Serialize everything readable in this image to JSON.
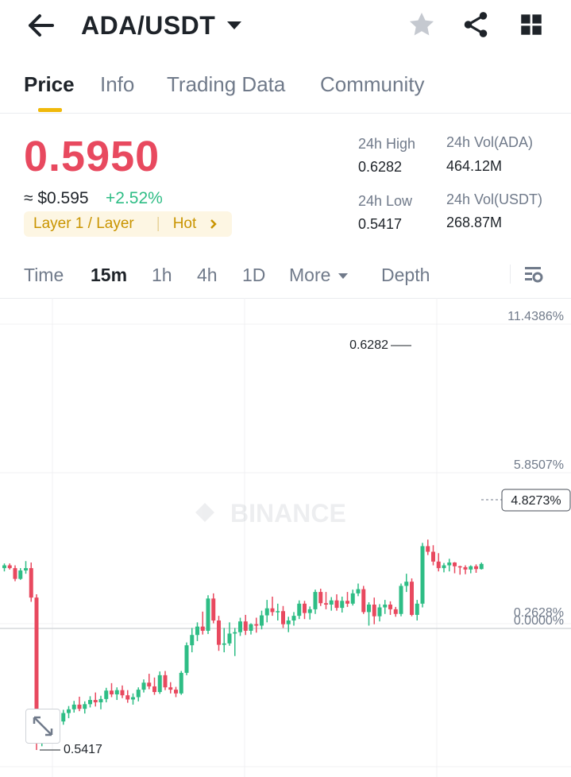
{
  "header": {
    "pair": "ADA/USDT",
    "back_icon": "arrow-left-icon",
    "dropdown_icon": "caret-down-icon",
    "star_icon": "star-icon",
    "share_icon": "share-icon",
    "grid_icon": "grid-icon"
  },
  "tabs": [
    {
      "label": "Price",
      "active": true
    },
    {
      "label": "Info",
      "active": false
    },
    {
      "label": "Trading Data",
      "active": false
    },
    {
      "label": "Community",
      "active": false
    }
  ],
  "ticker": {
    "last_price": "0.5950",
    "fiat_price": "≈ $0.595",
    "change": "+2.52%",
    "tag_category": "Layer 1 / Layer",
    "tag_hot": "Hot",
    "high_label": "24h High",
    "high_value": "0.6282",
    "low_label": "24h Low",
    "low_value": "0.5417",
    "vol_base_label": "24h Vol(ADA)",
    "vol_base_value": "464.12M",
    "vol_quote_label": "24h Vol(USDT)",
    "vol_quote_value": "268.87M"
  },
  "timeframes": {
    "time": "Time",
    "m15": "15m",
    "h1": "1h",
    "h4": "4h",
    "d1": "1D",
    "more": "More",
    "depth": "Depth",
    "settings_icon": "chart-settings-icon"
  },
  "colors": {
    "up": "#2ebd85",
    "down": "#e8495f",
    "accent": "#f0b90b"
  },
  "chart_data": {
    "type": "candlestick",
    "interval": "15m",
    "axis_percent_labels": [
      "11.4386%",
      "5.8507%",
      "0.2628%",
      "0.0000%"
    ],
    "current_percent": "4.8273%",
    "high_marker": "0.6282",
    "low_marker": "0.5417",
    "watermark": "BINANCE",
    "ylim": [
      0.541,
      0.63
    ],
    "candles": [
      [
        0.5806,
        0.5816,
        0.5799,
        0.5812
      ],
      [
        0.5812,
        0.5816,
        0.5803,
        0.5806
      ],
      [
        0.5806,
        0.5812,
        0.5778,
        0.5783
      ],
      [
        0.5783,
        0.5806,
        0.5781,
        0.5801
      ],
      [
        0.5801,
        0.5821,
        0.5794,
        0.5806
      ],
      [
        0.5806,
        0.5818,
        0.5734,
        0.5743
      ],
      [
        0.5743,
        0.575,
        0.5417,
        0.5436
      ],
      [
        0.5436,
        0.5461,
        0.5425,
        0.545
      ],
      [
        0.545,
        0.5483,
        0.5442,
        0.5472
      ],
      [
        0.5472,
        0.5487,
        0.5461,
        0.5464
      ],
      [
        0.5464,
        0.5484,
        0.5456,
        0.5478
      ],
      [
        0.5478,
        0.5503,
        0.5471,
        0.5496
      ],
      [
        0.5496,
        0.5511,
        0.5485,
        0.5504
      ],
      [
        0.5504,
        0.5522,
        0.5497,
        0.5514
      ],
      [
        0.5514,
        0.5531,
        0.55,
        0.5505
      ],
      [
        0.5505,
        0.5521,
        0.5495,
        0.5515
      ],
      [
        0.5515,
        0.5532,
        0.5508,
        0.5524
      ],
      [
        0.5524,
        0.554,
        0.551,
        0.5519
      ],
      [
        0.5519,
        0.5533,
        0.5504,
        0.5526
      ],
      [
        0.5526,
        0.555,
        0.5519,
        0.5544
      ],
      [
        0.5544,
        0.556,
        0.553,
        0.5536
      ],
      [
        0.5536,
        0.5551,
        0.5524,
        0.5545
      ],
      [
        0.5545,
        0.5555,
        0.5528,
        0.5534
      ],
      [
        0.5534,
        0.5545,
        0.5518,
        0.5525
      ],
      [
        0.5525,
        0.5538,
        0.5514,
        0.553
      ],
      [
        0.553,
        0.5551,
        0.5521,
        0.5546
      ],
      [
        0.5546,
        0.5568,
        0.554,
        0.5561
      ],
      [
        0.5561,
        0.558,
        0.5547,
        0.5553
      ],
      [
        0.5553,
        0.5572,
        0.5535,
        0.5541
      ],
      [
        0.5541,
        0.5585,
        0.5537,
        0.5577
      ],
      [
        0.5577,
        0.5586,
        0.5545,
        0.5551
      ],
      [
        0.5551,
        0.5562,
        0.5538,
        0.5546
      ],
      [
        0.5546,
        0.5552,
        0.553,
        0.5538
      ],
      [
        0.5538,
        0.5586,
        0.5535,
        0.5582
      ],
      [
        0.5582,
        0.5647,
        0.5577,
        0.5641
      ],
      [
        0.5641,
        0.5678,
        0.5626,
        0.5663
      ],
      [
        0.5663,
        0.569,
        0.565,
        0.5681
      ],
      [
        0.5681,
        0.5713,
        0.5664,
        0.5672
      ],
      [
        0.5672,
        0.5748,
        0.5665,
        0.5741
      ],
      [
        0.5741,
        0.5752,
        0.5688,
        0.5694
      ],
      [
        0.5694,
        0.5704,
        0.5629,
        0.5642
      ],
      [
        0.5642,
        0.5678,
        0.5626,
        0.5645
      ],
      [
        0.5645,
        0.569,
        0.564,
        0.5666
      ],
      [
        0.5666,
        0.5678,
        0.5618,
        0.5669
      ],
      [
        0.5669,
        0.57,
        0.5661,
        0.5692
      ],
      [
        0.5692,
        0.5706,
        0.5663,
        0.5672
      ],
      [
        0.5672,
        0.5688,
        0.5664,
        0.5686
      ],
      [
        0.5686,
        0.57,
        0.5668,
        0.5683
      ],
      [
        0.5683,
        0.5715,
        0.5675,
        0.5705
      ],
      [
        0.5705,
        0.5738,
        0.569,
        0.572
      ],
      [
        0.572,
        0.5745,
        0.5704,
        0.5712
      ],
      [
        0.5712,
        0.573,
        0.5694,
        0.5714
      ],
      [
        0.5714,
        0.5725,
        0.5678,
        0.5686
      ],
      [
        0.5686,
        0.5702,
        0.5669,
        0.5694
      ],
      [
        0.5694,
        0.5712,
        0.5683,
        0.5704
      ],
      [
        0.5704,
        0.5737,
        0.5697,
        0.573
      ],
      [
        0.573,
        0.5736,
        0.5697,
        0.571
      ],
      [
        0.571,
        0.5724,
        0.5696,
        0.5718
      ],
      [
        0.5718,
        0.576,
        0.5708,
        0.5755
      ],
      [
        0.5755,
        0.5762,
        0.5725,
        0.5731
      ],
      [
        0.5731,
        0.5755,
        0.5718,
        0.5728
      ],
      [
        0.5728,
        0.5744,
        0.5715,
        0.5737
      ],
      [
        0.5737,
        0.575,
        0.5715,
        0.5721
      ],
      [
        0.5721,
        0.5745,
        0.5711,
        0.5736
      ],
      [
        0.5736,
        0.5755,
        0.5723,
        0.573
      ],
      [
        0.573,
        0.576,
        0.5726,
        0.5752
      ],
      [
        0.5752,
        0.5773,
        0.5746,
        0.5761
      ],
      [
        0.5761,
        0.5768,
        0.5708,
        0.5712
      ],
      [
        0.5712,
        0.5733,
        0.5683,
        0.5728
      ],
      [
        0.5728,
        0.5743,
        0.5686,
        0.5703
      ],
      [
        0.5703,
        0.5729,
        0.5692,
        0.5722
      ],
      [
        0.5722,
        0.5738,
        0.5708,
        0.5728
      ],
      [
        0.5728,
        0.5735,
        0.5706,
        0.5718
      ],
      [
        0.5718,
        0.5723,
        0.5702,
        0.5708
      ],
      [
        0.5708,
        0.5773,
        0.5703,
        0.5768
      ],
      [
        0.5768,
        0.5794,
        0.5755,
        0.5777
      ],
      [
        0.5777,
        0.5784,
        0.5703,
        0.5706
      ],
      [
        0.5706,
        0.5738,
        0.5694,
        0.573
      ],
      [
        0.573,
        0.586,
        0.5722,
        0.5853
      ],
      [
        0.5853,
        0.5867,
        0.5834,
        0.5841
      ],
      [
        0.5841,
        0.5855,
        0.5812,
        0.582
      ],
      [
        0.582,
        0.5838,
        0.5799,
        0.5806
      ],
      [
        0.5806,
        0.5817,
        0.5797,
        0.5812
      ],
      [
        0.5812,
        0.5826,
        0.5799,
        0.5818
      ],
      [
        0.5818,
        0.5819,
        0.5795,
        0.581
      ],
      [
        0.581,
        0.5811,
        0.5792,
        0.5808
      ],
      [
        0.5808,
        0.5812,
        0.5793,
        0.5803
      ],
      [
        0.5803,
        0.5812,
        0.5795,
        0.581
      ],
      [
        0.581,
        0.5814,
        0.5796,
        0.5804
      ],
      [
        0.5804,
        0.5818,
        0.5803,
        0.5815
      ]
    ]
  }
}
